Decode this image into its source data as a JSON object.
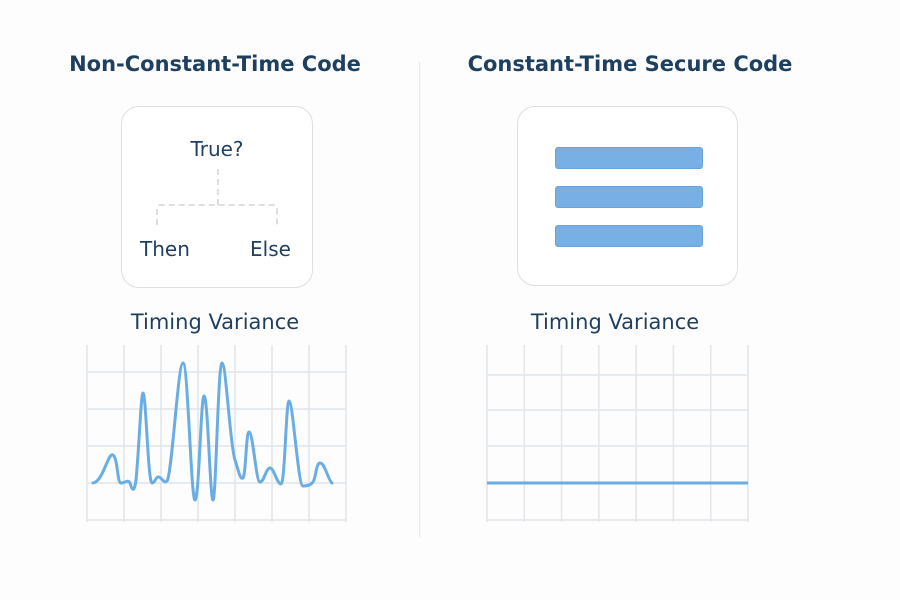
{
  "left": {
    "title": "Non-Constant-Time Code",
    "condition": "True?",
    "then_label": "Then",
    "else_label": "Else",
    "chart_title": "Timing Variance"
  },
  "right": {
    "title": "Constant-Time Secure Code",
    "chart_title": "Timing Variance"
  },
  "colors": {
    "accent": "#6aade4",
    "text": "#1f3f5f",
    "grid": "#e2e5e9"
  }
}
